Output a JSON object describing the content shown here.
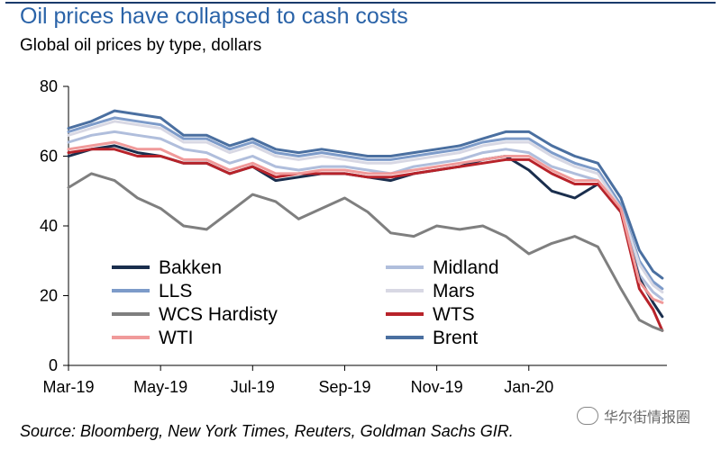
{
  "header": {
    "title": "Oil prices have collapsed to cash costs",
    "subtitle": "Global oil prices by type, dollars"
  },
  "footer": {
    "source": "Source: Bloomberg, New York Times, Reuters, Goldman Sachs GIR.",
    "watermark": "华尔街情报圈",
    "watermark_icon": "wechat-icon"
  },
  "chart_data": {
    "type": "line",
    "title": "Global oil prices by type, dollars",
    "xlabel": "",
    "ylabel": "",
    "ylim": [
      0,
      80
    ],
    "yticks": [
      0,
      20,
      40,
      60,
      80
    ],
    "xlim": [
      0,
      13
    ],
    "xticks": [
      {
        "label": "Mar-19",
        "t": 0
      },
      {
        "label": "May-19",
        "t": 2
      },
      {
        "label": "Jul-19",
        "t": 4
      },
      {
        "label": "Sep-19",
        "t": 6
      },
      {
        "label": "Nov-19",
        "t": 8
      },
      {
        "label": "Jan-20",
        "t": 10
      }
    ],
    "x": [
      0,
      0.5,
      1,
      1.5,
      2,
      2.5,
      3,
      3.5,
      4,
      4.5,
      5,
      5.5,
      6,
      6.5,
      7,
      7.5,
      8,
      8.5,
      9,
      9.5,
      10,
      10.5,
      11,
      11.5,
      12,
      12.4,
      12.7,
      12.9
    ],
    "series": [
      {
        "name": "Brent",
        "color": "#4a6fa0",
        "width": 3,
        "values": [
          68,
          70,
          73,
          72,
          71,
          66,
          66,
          63,
          65,
          62,
          61,
          62,
          61,
          60,
          60,
          61,
          62,
          63,
          65,
          67,
          67,
          63,
          60,
          58,
          48,
          33,
          27,
          25
        ]
      },
      {
        "name": "LLS",
        "color": "#7d9bc9",
        "width": 3,
        "values": [
          67,
          69,
          71,
          70,
          69,
          65,
          65,
          62,
          64,
          61,
          60,
          61,
          60,
          59,
          59,
          60,
          61,
          62,
          64,
          65,
          65,
          61,
          58,
          56,
          46,
          30,
          24,
          22
        ]
      },
      {
        "name": "Mars",
        "color": "#d8d8e4",
        "width": 3,
        "values": [
          66,
          68,
          70,
          69,
          68,
          64,
          64,
          61,
          63,
          60,
          59,
          60,
          59,
          58,
          58,
          59,
          60,
          61,
          63,
          64,
          64,
          60,
          57,
          55,
          45,
          29,
          23,
          21
        ]
      },
      {
        "name": "Midland",
        "color": "#b0bedc",
        "width": 3,
        "values": [
          64,
          66,
          67,
          66,
          65,
          62,
          61,
          58,
          60,
          57,
          56,
          57,
          57,
          56,
          55,
          57,
          58,
          59,
          61,
          62,
          61,
          57,
          55,
          53,
          44,
          26,
          21,
          19
        ]
      },
      {
        "name": "Bakken",
        "color": "#1a2e4d",
        "width": 3,
        "values": [
          60,
          62,
          63,
          61,
          60,
          58,
          58,
          55,
          57,
          53,
          54,
          55,
          55,
          54,
          53,
          55,
          56,
          57,
          59,
          60,
          56,
          50,
          48,
          52,
          44,
          25,
          18,
          14
        ]
      },
      {
        "name": "WTS",
        "color": "#b8232a",
        "width": 3,
        "values": [
          61,
          62,
          62,
          60,
          60,
          58,
          58,
          55,
          57,
          54,
          55,
          55,
          55,
          54,
          54,
          55,
          56,
          57,
          58,
          59,
          59,
          55,
          52,
          52,
          44,
          22,
          16,
          10
        ]
      },
      {
        "name": "WTI",
        "color": "#f09a9a",
        "width": 3,
        "values": [
          62,
          63,
          64,
          62,
          62,
          59,
          59,
          56,
          58,
          55,
          55,
          56,
          56,
          55,
          55,
          56,
          57,
          58,
          59,
          60,
          60,
          56,
          53,
          53,
          45,
          24,
          19,
          18
        ]
      },
      {
        "name": "WCS Hardisty",
        "color": "#7f7f7f",
        "width": 3,
        "values": [
          51,
          55,
          53,
          48,
          45,
          40,
          39,
          44,
          49,
          47,
          42,
          45,
          48,
          44,
          38,
          37,
          40,
          39,
          40,
          37,
          32,
          35,
          37,
          34,
          22,
          13,
          11,
          10
        ]
      }
    ],
    "legend": {
      "placement": "lower-left",
      "entries_left": [
        "Bakken",
        "LLS",
        "WCS Hardisty",
        "WTI"
      ],
      "entries_right": [
        "Midland",
        "Mars",
        "WTS",
        "Brent"
      ]
    }
  }
}
